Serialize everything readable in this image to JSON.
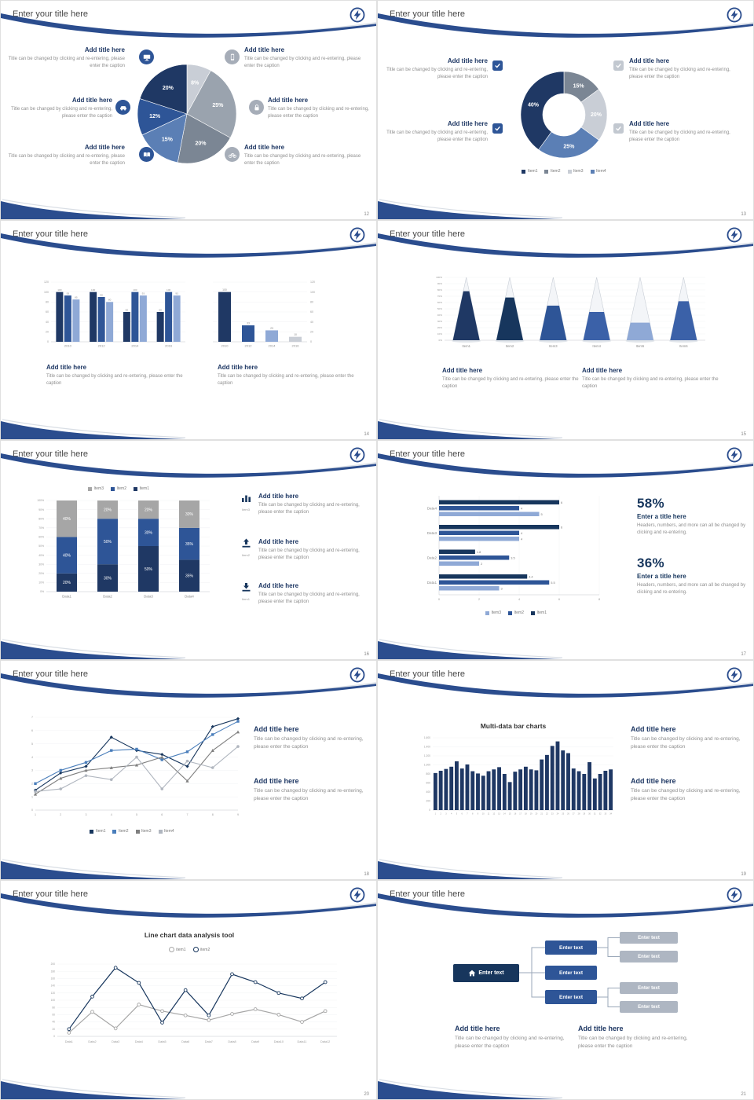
{
  "c": {
    "slide_title": "Enter your title here",
    "add_title": "Add title here",
    "caption": "Title can be changed by clicking and re-entering, please enter the caption",
    "enter_text": "Enter text",
    "enter_title": "Enter a title here",
    "stat_caption": "Headers, numbers, and more can all be changed by clicking and re-entering."
  },
  "slides": [
    {
      "page": "12",
      "chart_data": {
        "type": "pie",
        "values": [
          8,
          25,
          20,
          15,
          12,
          20
        ],
        "labels": [
          "8%",
          "25%",
          "20%",
          "15%",
          "12%",
          "20%"
        ],
        "colors": [
          "#c9ced6",
          "#9aa3ae",
          "#7b8694",
          "#5b7fb5",
          "#2e5597",
          "#1f3864"
        ]
      },
      "icons": [
        "monitor",
        "smartphone",
        "car",
        "lock",
        "book",
        "bicycle"
      ]
    },
    {
      "page": "13",
      "chart_data": {
        "type": "donut",
        "values": [
          15,
          20,
          25,
          40
        ],
        "labels": [
          "15%",
          "20%",
          "25%",
          "40%"
        ],
        "colors": [
          "#7b8694",
          "#c9ced6",
          "#5b7fb5",
          "#1f3864"
        ],
        "legend": [
          {
            "label": "Item1",
            "color": "#1f3864"
          },
          {
            "label": "Item2",
            "color": "#7b8694"
          },
          {
            "label": "Item3",
            "color": "#c9ced6"
          },
          {
            "label": "Item4",
            "color": "#5b7fb5"
          }
        ]
      }
    },
    {
      "page": "14",
      "chart_data": [
        {
          "type": "bar",
          "categories": [
            "2010",
            "2012",
            "2014",
            "2016"
          ],
          "ylim": [
            0,
            120
          ],
          "series": [
            {
              "name": "Series1",
              "color": "#1f3864",
              "values": [
                100,
                100,
                60,
                60
              ]
            },
            {
              "name": "Series2",
              "color": "#2e5597",
              "values": [
                93,
                90,
                100,
                100
              ]
            },
            {
              "name": "Series3",
              "color": "#8fa9d6",
              "values": [
                85,
                80,
                93,
                93
              ]
            }
          ]
        },
        {
          "type": "bar",
          "categories": [
            "2010",
            "2012",
            "2014",
            "2016"
          ],
          "ylim": [
            0,
            120
          ],
          "values": [
            100,
            33,
            23,
            10
          ],
          "colors": [
            "#1f3864",
            "#2e5597",
            "#8fa9d6",
            "#c9ced6"
          ]
        }
      ]
    },
    {
      "page": "15",
      "chart_data": {
        "type": "pyramid",
        "categories": [
          "Item1",
          "Item2",
          "Item3",
          "Item4",
          "Item5",
          "Item6"
        ],
        "values": [
          78,
          68,
          55,
          45,
          28,
          62
        ],
        "colors": [
          "#1f3864",
          "#17365d",
          "#2e5597",
          "#3b61a8",
          "#8fa9d6",
          "#3b61a8"
        ],
        "ylim": [
          0,
          100
        ]
      }
    },
    {
      "page": "16",
      "chart_data": {
        "type": "stacked-bar",
        "categories": [
          "Data1",
          "Data2",
          "Data3",
          "Data4"
        ],
        "ylim": [
          0,
          100
        ],
        "series": [
          {
            "name": "Item1",
            "color": "#1f3864",
            "values": [
              20,
              30,
              50,
              35
            ]
          },
          {
            "name": "Item2",
            "color": "#2e5597",
            "values": [
              40,
              50,
              30,
              35
            ]
          },
          {
            "name": "Item3",
            "color": "#a6a6a6",
            "values": [
              40,
              20,
              20,
              30
            ]
          }
        ],
        "legend_order": [
          "Item3",
          "Item2",
          "Item1"
        ]
      }
    },
    {
      "page": "17",
      "chart_data": {
        "type": "horizontal-bar",
        "categories": [
          "Data4",
          "Data3",
          "Data2",
          "Data1"
        ],
        "xlim": [
          0,
          8
        ],
        "xticks": [
          0,
          2,
          4,
          6,
          8
        ],
        "series": [
          {
            "name": "Item1",
            "color": "#17365d",
            "values": [
              6,
              6,
              1.8,
              4.4
            ]
          },
          {
            "name": "Item2",
            "color": "#2e5597",
            "values": [
              4,
              4,
              3.5,
              5.5
            ]
          },
          {
            "name": "Item3",
            "color": "#8fa9d6",
            "values": [
              5,
              4,
              2,
              3
            ]
          }
        ],
        "legend_order": [
          "Item3",
          "Item2",
          "Item1"
        ]
      },
      "stats": [
        {
          "value": "58%"
        },
        {
          "value": "36%"
        }
      ]
    },
    {
      "page": "18",
      "chart_data": {
        "type": "line",
        "x": [
          1,
          2,
          3,
          4,
          5,
          6,
          7,
          8,
          9
        ],
        "ylim": [
          0,
          7
        ],
        "series": [
          {
            "name": "Item1",
            "color": "#17365d",
            "marker": "diamond",
            "values": [
              1.5,
              2.8,
              3.3,
              5.5,
              4.5,
              4.2,
              3.3,
              6.3,
              6.9
            ]
          },
          {
            "name": "Item2",
            "color": "#4a7ebb",
            "marker": "square",
            "values": [
              2.0,
              3.0,
              3.6,
              4.5,
              4.6,
              3.8,
              4.4,
              5.7,
              6.7
            ]
          },
          {
            "name": "Item3",
            "color": "#7f7f7f",
            "marker": "triangle",
            "values": [
              1.2,
              2.4,
              3.0,
              3.2,
              3.4,
              4.0,
              2.2,
              4.5,
              5.9
            ]
          },
          {
            "name": "Item4",
            "color": "#b0b6bf",
            "marker": "circle",
            "values": [
              1.4,
              1.6,
              2.6,
              2.3,
              4.0,
              1.6,
              3.7,
              3.2,
              4.8
            ]
          }
        ]
      }
    },
    {
      "page": "19",
      "chart_title": "Multi-data bar charts",
      "chart_data": {
        "type": "bar",
        "title": "Multi-data bar charts",
        "ylim": [
          0,
          1600
        ],
        "color": "#1f3864",
        "categories": [
          1,
          2,
          3,
          4,
          5,
          6,
          7,
          8,
          9,
          10,
          11,
          12,
          13,
          14,
          15,
          16,
          17,
          18,
          19,
          20,
          21,
          22,
          23,
          24,
          25,
          26,
          27,
          28,
          29,
          30,
          31,
          32,
          33,
          34
        ],
        "values": [
          820,
          870,
          910,
          960,
          1080,
          920,
          1010,
          860,
          810,
          760,
          860,
          900,
          950,
          800,
          620,
          850,
          900,
          960,
          900,
          880,
          1120,
          1220,
          1420,
          1520,
          1320,
          1260,
          920,
          860,
          800,
          1060,
          700,
          800,
          870,
          900
        ]
      }
    },
    {
      "page": "20",
      "chart_title": "Line chart data analysis tool",
      "chart_data": {
        "type": "line",
        "title": "Line chart data analysis tool",
        "categories": [
          "Data1",
          "Data2",
          "Data3",
          "Data4",
          "Data5",
          "Data6",
          "Data7",
          "Data8",
          "Data9",
          "Data10",
          "Data11",
          "Data12"
        ],
        "ylim": [
          0,
          200
        ],
        "series": [
          {
            "name": "item1",
            "color": "#a6a6a6",
            "values": [
              10,
              68,
              22,
              88,
              70,
              58,
              45,
              62,
              75,
              60,
              40,
              70
            ]
          },
          {
            "name": "item2",
            "color": "#17365d",
            "values": [
              20,
              110,
              190,
              148,
              38,
              128,
              58,
              172,
              150,
              120,
              105,
              150
            ]
          }
        ]
      }
    },
    {
      "page": "21",
      "diagram": {
        "root": {
          "label": "Enter text",
          "icon": "home"
        },
        "children": [
          "Enter text",
          "Enter text",
          "Enter text"
        ],
        "leaves": [
          "Enter text",
          "Enter text",
          "Enter text",
          "Enter text"
        ]
      }
    }
  ]
}
